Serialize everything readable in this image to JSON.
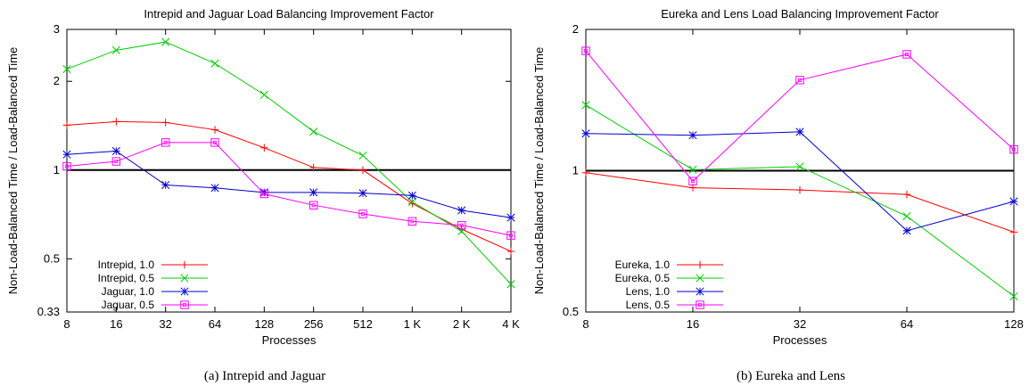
{
  "chart_data": [
    {
      "type": "line",
      "title": "Intrepid and Jaguar Load Balancing Improvement Factor",
      "xlabel": "Processes",
      "ylabel": "Non-Load-Balanced Time / Load-Balanced Time",
      "caption": "(a) Intrepid and Jaguar",
      "y_scale": "log",
      "ylim": [
        0.33,
        3
      ],
      "x_scale": "log2",
      "x": [
        8,
        16,
        32,
        64,
        128,
        256,
        512,
        1024,
        2048,
        4096
      ],
      "x_tick_labels": [
        "8",
        "16",
        "32",
        "64",
        "128",
        "256",
        "512",
        "1 K",
        "2 K",
        "4 K"
      ],
      "y_ticks": [
        0.33,
        0.5,
        1,
        2,
        3
      ],
      "y_tick_labels": [
        "0.33",
        "0.5",
        "1",
        "2",
        "3"
      ],
      "reference_line": 1,
      "legend_position": "bottom-left",
      "series": [
        {
          "name": "Intrepid, 1.0",
          "color": "#ff0000",
          "marker": "plus",
          "values": [
            1.42,
            1.46,
            1.45,
            1.37,
            1.19,
            1.02,
            1.0,
            0.77,
            0.63,
            0.53
          ]
        },
        {
          "name": "Intrepid, 0.5",
          "color": "#00cc00",
          "marker": "x",
          "values": [
            2.2,
            2.55,
            2.72,
            2.3,
            1.8,
            1.35,
            1.12,
            0.78,
            0.62,
            0.41
          ]
        },
        {
          "name": "Jaguar, 1.0",
          "color": "#0000cc",
          "marker": "star",
          "values": [
            1.13,
            1.16,
            0.89,
            0.87,
            0.84,
            0.84,
            0.835,
            0.82,
            0.73,
            0.69
          ]
        },
        {
          "name": "Jaguar, 0.5",
          "color": "#ff00ff",
          "marker": "box",
          "values": [
            1.03,
            1.07,
            1.24,
            1.24,
            0.83,
            0.76,
            0.71,
            0.67,
            0.65,
            0.6
          ]
        }
      ]
    },
    {
      "type": "line",
      "title": "Eureka and Lens Load Balancing Improvement Factor",
      "xlabel": "Processes",
      "ylabel": "Non-Load-Balanced Time / Load-Balanced Time",
      "caption": "(b) Eureka and Lens",
      "y_scale": "log",
      "ylim": [
        0.5,
        2
      ],
      "x_scale": "log2",
      "x": [
        8,
        16,
        32,
        64,
        128
      ],
      "x_tick_labels": [
        "8",
        "16",
        "32",
        "64",
        "128"
      ],
      "y_ticks": [
        0.5,
        1,
        2
      ],
      "y_tick_labels": [
        "0.5",
        "1",
        "2"
      ],
      "reference_line": 1,
      "legend_position": "bottom-left",
      "series": [
        {
          "name": "Eureka, 1.0",
          "color": "#ff0000",
          "marker": "plus",
          "values": [
            0.99,
            0.92,
            0.91,
            0.89,
            0.74
          ]
        },
        {
          "name": "Eureka, 0.5",
          "color": "#00cc00",
          "marker": "x",
          "values": [
            1.38,
            1.005,
            1.02,
            0.8,
            0.54
          ]
        },
        {
          "name": "Lens, 1.0",
          "color": "#0000cc",
          "marker": "star",
          "values": [
            1.2,
            1.19,
            1.21,
            0.745,
            0.86
          ]
        },
        {
          "name": "Lens, 0.5",
          "color": "#ff00ff",
          "marker": "box",
          "values": [
            1.8,
            0.95,
            1.56,
            1.77,
            1.11
          ]
        }
      ]
    }
  ]
}
